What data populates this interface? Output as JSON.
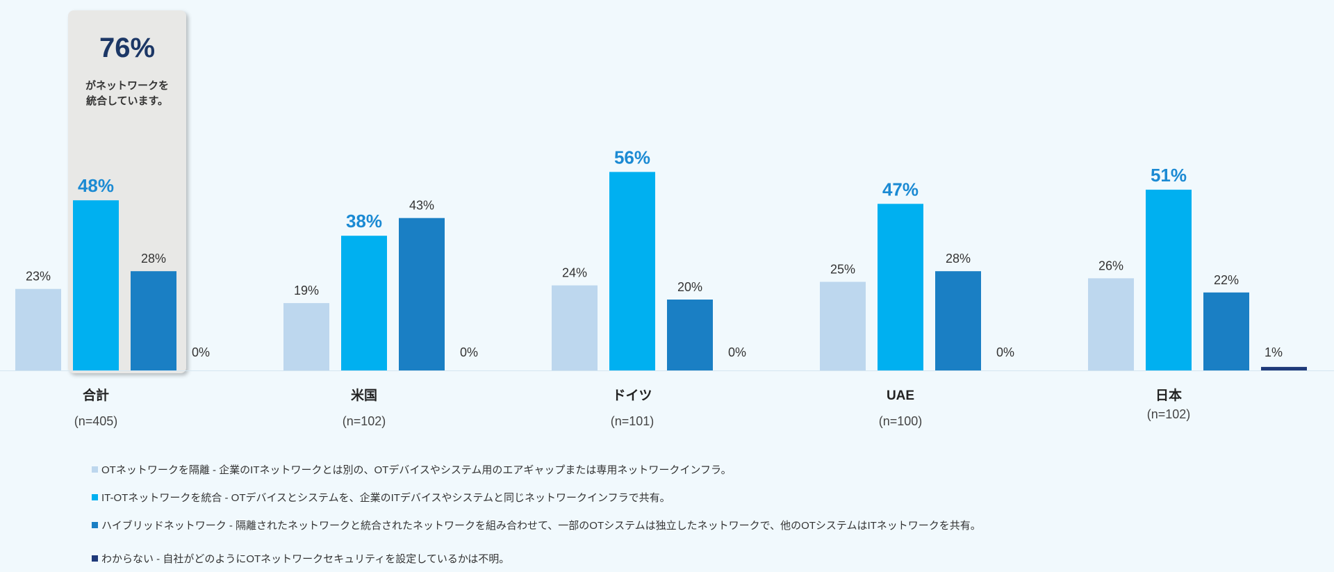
{
  "callout": {
    "value": "76%",
    "text": "がネットワークを統合しています。"
  },
  "chart_data": {
    "type": "bar",
    "categories": [
      "合計",
      "米国",
      "ドイツ",
      "UAE",
      "日本"
    ],
    "category_n": [
      "(n=405)",
      "(n=102)",
      "(n=101)",
      "(n=100)",
      "(n=102)"
    ],
    "series": [
      {
        "name": "OTネットワークを隔離 - 企業のITネットワークとは別の、OTデバイスやシステム用のエアギャップまたは専用ネットワークインフラ。",
        "color": "#bdd7ee",
        "values": [
          23,
          19,
          24,
          25,
          26
        ]
      },
      {
        "name": "IT-OTネットワークを統合 - OTデバイスとシステムを、企業のITデバイスやシステムと同じネットワークインフラで共有。",
        "color": "#00b0f0",
        "values": [
          48,
          38,
          56,
          47,
          51
        ]
      },
      {
        "name": "ハイブリッドネットワーク - 隔離されたネットワークと統合されたネットワークを組み合わせて、一部のOTシステムは独立したネットワークで、他のOTシステムはITネットワークを共有。",
        "color": "#1a7fc4",
        "values": [
          28,
          43,
          20,
          28,
          22
        ]
      },
      {
        "name": "わからない - 自社がどのようにOTネットワークセキュリティを設定しているかは不明。",
        "color": "#1f3a7a",
        "values": [
          0,
          0,
          0,
          0,
          1
        ]
      }
    ],
    "highlight_series": 1,
    "highlight_color": "#1b8ad3",
    "ylim": [
      0,
      100
    ],
    "grid": false,
    "legend_position": "bottom"
  }
}
